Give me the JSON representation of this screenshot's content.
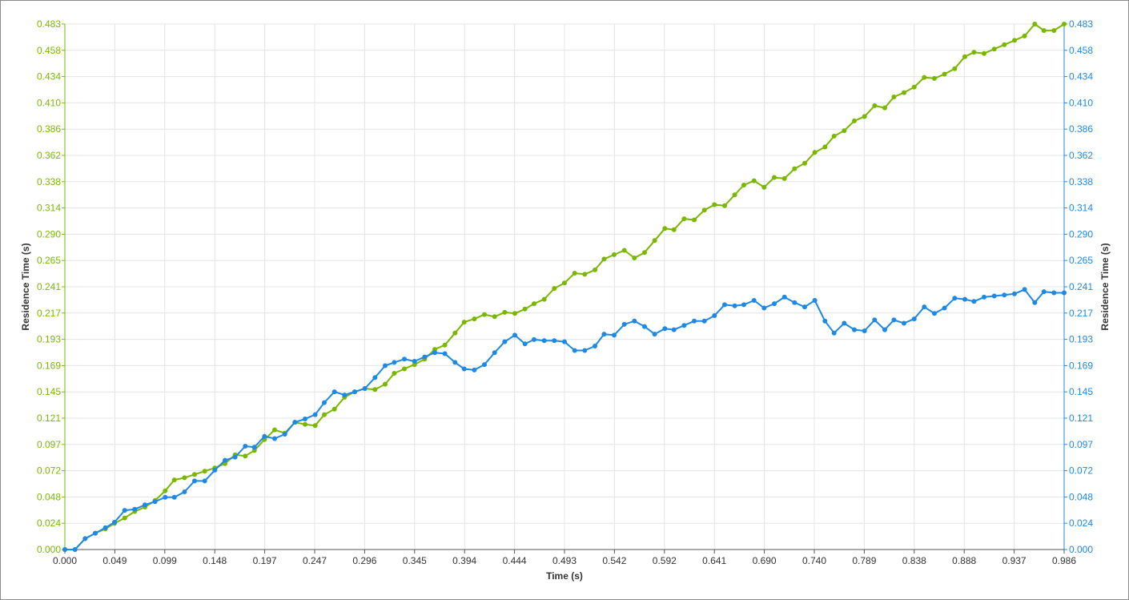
{
  "chart_data": {
    "type": "line",
    "title": "",
    "xlabel": "Time (s)",
    "ylabel_left": "Residence Time (s)",
    "ylabel_right": "Residence Time (s)",
    "xlim": [
      0.0,
      0.986
    ],
    "ylim": [
      0.0,
      0.483
    ],
    "x_ticks": [
      "0.000",
      "0.049",
      "0.099",
      "0.148",
      "0.197",
      "0.247",
      "0.296",
      "0.345",
      "0.394",
      "0.444",
      "0.493",
      "0.542",
      "0.592",
      "0.641",
      "0.690",
      "0.740",
      "0.789",
      "0.838",
      "0.888",
      "0.937",
      "0.986"
    ],
    "y_ticks": [
      "0.000",
      "0.024",
      "0.048",
      "0.072",
      "0.097",
      "0.121",
      "0.145",
      "0.169",
      "0.193",
      "0.217",
      "0.241",
      "0.265",
      "0.290",
      "0.314",
      "0.338",
      "0.362",
      "0.386",
      "0.410",
      "0.434",
      "0.458",
      "0.483"
    ],
    "grid": true,
    "colors": {
      "series_green": "#7ab800",
      "series_blue": "#1e88e5",
      "grid": "#e4e4e4"
    },
    "series": [
      {
        "axis": "left",
        "color": "#7ab800",
        "x": [
          0.0,
          0.01,
          0.02,
          0.03,
          0.04,
          0.049,
          0.059,
          0.069,
          0.079,
          0.089,
          0.099,
          0.108,
          0.118,
          0.128,
          0.138,
          0.148,
          0.158,
          0.168,
          0.178,
          0.187,
          0.197,
          0.207,
          0.217,
          0.227,
          0.237,
          0.247,
          0.256,
          0.266,
          0.276,
          0.286,
          0.296,
          0.306,
          0.316,
          0.325,
          0.335,
          0.345,
          0.355,
          0.365,
          0.375,
          0.385,
          0.394,
          0.404,
          0.414,
          0.424,
          0.434,
          0.444,
          0.454,
          0.463,
          0.473,
          0.483,
          0.493,
          0.503,
          0.513,
          0.523,
          0.532,
          0.542,
          0.552,
          0.562,
          0.572,
          0.582,
          0.592,
          0.601,
          0.611,
          0.621,
          0.631,
          0.641,
          0.651,
          0.661,
          0.67,
          0.68,
          0.69,
          0.7,
          0.71,
          0.72,
          0.73,
          0.74,
          0.75,
          0.759,
          0.769,
          0.779,
          0.789,
          0.799,
          0.809,
          0.818,
          0.828,
          0.838,
          0.848,
          0.858,
          0.868,
          0.878,
          0.888,
          0.897,
          0.907,
          0.917,
          0.927,
          0.937,
          0.947,
          0.957,
          0.966,
          0.976,
          0.986
        ],
        "values": [
          0.0,
          0.0,
          0.01,
          0.015,
          0.019,
          0.024,
          0.029,
          0.035,
          0.039,
          0.045,
          0.054,
          0.064,
          0.066,
          0.069,
          0.072,
          0.075,
          0.079,
          0.087,
          0.086,
          0.091,
          0.101,
          0.11,
          0.107,
          0.117,
          0.115,
          0.114,
          0.124,
          0.129,
          0.14,
          0.145,
          0.148,
          0.147,
          0.152,
          0.162,
          0.166,
          0.17,
          0.175,
          0.184,
          0.188,
          0.199,
          0.209,
          0.212,
          0.216,
          0.214,
          0.218,
          0.217,
          0.221,
          0.226,
          0.23,
          0.24,
          0.245,
          0.254,
          0.253,
          0.257,
          0.267,
          0.271,
          0.275,
          0.268,
          0.273,
          0.284,
          0.295,
          0.294,
          0.304,
          0.303,
          0.312,
          0.317,
          0.316,
          0.326,
          0.335,
          0.339,
          0.333,
          0.342,
          0.341,
          0.35,
          0.355,
          0.365,
          0.37,
          0.38,
          0.385,
          0.394,
          0.398,
          0.408,
          0.406,
          0.416,
          0.42,
          0.425,
          0.434,
          0.433,
          0.437,
          0.442,
          0.453,
          0.457,
          0.456,
          0.46,
          0.464,
          0.468,
          0.472,
          0.483,
          0.477,
          0.477,
          0.484
        ]
      },
      {
        "axis": "right",
        "color": "#1e88e5",
        "x": [
          0.0,
          0.01,
          0.02,
          0.03,
          0.04,
          0.049,
          0.059,
          0.069,
          0.079,
          0.089,
          0.099,
          0.108,
          0.118,
          0.128,
          0.138,
          0.148,
          0.158,
          0.168,
          0.178,
          0.187,
          0.197,
          0.207,
          0.217,
          0.227,
          0.237,
          0.247,
          0.256,
          0.266,
          0.276,
          0.286,
          0.296,
          0.306,
          0.316,
          0.325,
          0.335,
          0.345,
          0.355,
          0.365,
          0.375,
          0.385,
          0.394,
          0.404,
          0.414,
          0.424,
          0.434,
          0.444,
          0.454,
          0.463,
          0.473,
          0.483,
          0.493,
          0.503,
          0.513,
          0.523,
          0.532,
          0.542,
          0.552,
          0.562,
          0.572,
          0.582,
          0.592,
          0.601,
          0.611,
          0.621,
          0.631,
          0.641,
          0.651,
          0.661,
          0.67,
          0.68,
          0.69,
          0.7,
          0.71,
          0.72,
          0.73,
          0.74,
          0.75,
          0.759,
          0.769,
          0.779,
          0.789,
          0.799,
          0.809,
          0.818,
          0.828,
          0.838,
          0.848,
          0.858,
          0.868,
          0.878,
          0.888,
          0.897,
          0.907,
          0.917,
          0.927,
          0.937,
          0.947,
          0.957,
          0.966,
          0.976,
          0.986
        ],
        "values": [
          0.0,
          0.0,
          0.01,
          0.015,
          0.02,
          0.025,
          0.036,
          0.037,
          0.041,
          0.044,
          0.048,
          0.048,
          0.053,
          0.063,
          0.063,
          0.073,
          0.082,
          0.085,
          0.095,
          0.094,
          0.104,
          0.102,
          0.106,
          0.117,
          0.12,
          0.124,
          0.135,
          0.145,
          0.142,
          0.145,
          0.148,
          0.158,
          0.169,
          0.172,
          0.175,
          0.173,
          0.177,
          0.181,
          0.18,
          0.172,
          0.166,
          0.165,
          0.17,
          0.181,
          0.191,
          0.197,
          0.189,
          0.193,
          0.192,
          0.192,
          0.191,
          0.183,
          0.183,
          0.187,
          0.198,
          0.197,
          0.207,
          0.21,
          0.205,
          0.198,
          0.203,
          0.202,
          0.206,
          0.21,
          0.21,
          0.215,
          0.225,
          0.224,
          0.225,
          0.229,
          0.222,
          0.226,
          0.232,
          0.227,
          0.223,
          0.229,
          0.21,
          0.199,
          0.208,
          0.202,
          0.201,
          0.211,
          0.202,
          0.211,
          0.208,
          0.212,
          0.223,
          0.217,
          0.222,
          0.231,
          0.23,
          0.228,
          0.232,
          0.233,
          0.234,
          0.235,
          0.239,
          0.227,
          0.237,
          0.236,
          0.236
        ]
      }
    ]
  }
}
